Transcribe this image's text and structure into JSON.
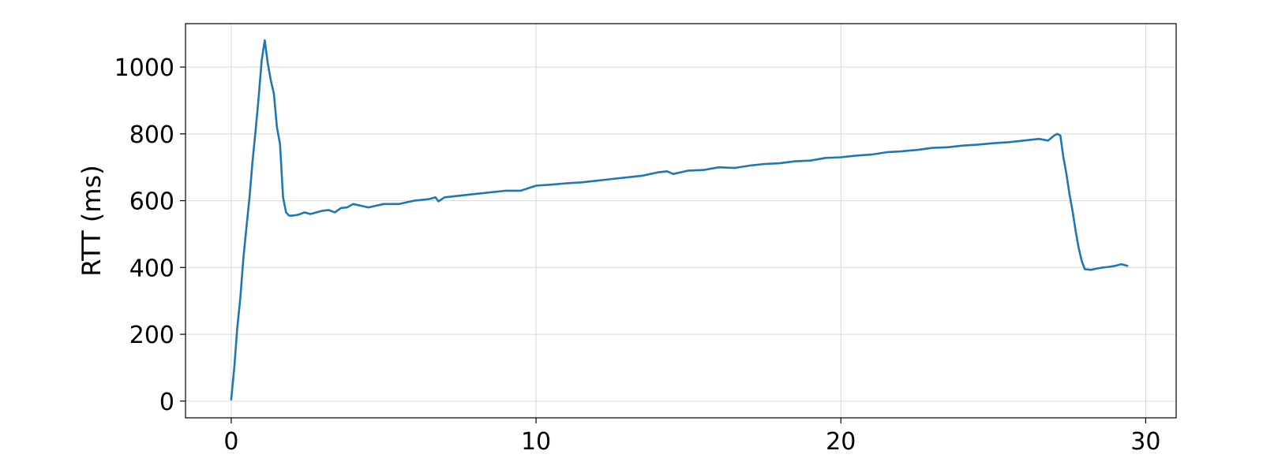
{
  "chart_data": {
    "type": "line",
    "title": "",
    "xlabel": "",
    "ylabel": "RTT (ms)",
    "xlim": [
      -1.5,
      31
    ],
    "ylim": [
      -50,
      1130
    ],
    "xticks": [
      0,
      10,
      20,
      30
    ],
    "xtick_labels": [
      "0",
      "10",
      "20",
      "30"
    ],
    "yticks": [
      0,
      200,
      400,
      600,
      800,
      1000
    ],
    "ytick_labels": [
      "0",
      "200",
      "400",
      "600",
      "800",
      "1000"
    ],
    "grid": true,
    "series": [
      {
        "name": "RTT",
        "color": "#1f77b4",
        "x": [
          0,
          0.1,
          0.2,
          0.3,
          0.4,
          0.5,
          0.6,
          0.7,
          0.8,
          0.9,
          1.0,
          1.1,
          1.2,
          1.3,
          1.4,
          1.5,
          1.6,
          1.7,
          1.8,
          1.9,
          2.0,
          2.2,
          2.4,
          2.6,
          2.8,
          3.0,
          3.2,
          3.4,
          3.6,
          3.8,
          4.0,
          4.5,
          5.0,
          5.5,
          6.0,
          6.5,
          6.7,
          6.8,
          7.0,
          7.5,
          8.0,
          8.5,
          9.0,
          9.5,
          10.0,
          10.5,
          11.0,
          11.5,
          12.0,
          12.5,
          13.0,
          13.5,
          14.0,
          14.3,
          14.5,
          15.0,
          15.5,
          16.0,
          16.5,
          17.0,
          17.5,
          18.0,
          18.5,
          19.0,
          19.5,
          20.0,
          20.5,
          21.0,
          21.5,
          22.0,
          22.5,
          23.0,
          23.5,
          24.0,
          24.5,
          25.0,
          25.5,
          26.0,
          26.5,
          26.8,
          27.0,
          27.1,
          27.2,
          27.3,
          27.4,
          27.5,
          27.6,
          27.7,
          27.8,
          27.9,
          28.0,
          28.2,
          28.4,
          28.6,
          28.8,
          29.0,
          29.2,
          29.4
        ],
        "y": [
          5,
          100,
          220,
          310,
          430,
          520,
          610,
          720,
          810,
          910,
          1020,
          1080,
          1010,
          960,
          920,
          820,
          770,
          610,
          565,
          555,
          555,
          558,
          565,
          560,
          565,
          570,
          572,
          565,
          578,
          580,
          590,
          580,
          590,
          590,
          600,
          605,
          610,
          598,
          610,
          615,
          620,
          625,
          630,
          630,
          645,
          648,
          652,
          655,
          660,
          665,
          670,
          675,
          685,
          688,
          680,
          690,
          692,
          700,
          698,
          705,
          710,
          712,
          718,
          720,
          728,
          730,
          735,
          738,
          745,
          748,
          752,
          758,
          760,
          765,
          768,
          772,
          775,
          780,
          785,
          780,
          795,
          800,
          795,
          730,
          680,
          620,
          570,
          510,
          460,
          420,
          395,
          393,
          397,
          400,
          402,
          405,
          410,
          405
        ]
      }
    ]
  }
}
